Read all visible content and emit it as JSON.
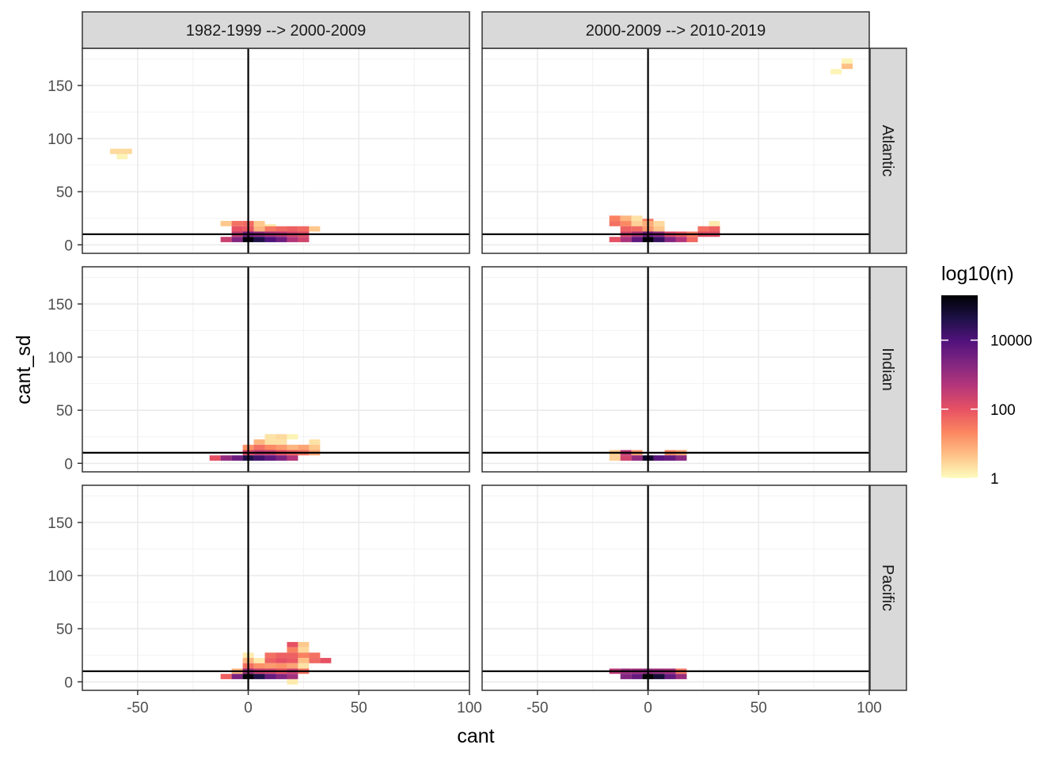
{
  "chart_data": {
    "type": "heatmap",
    "geom": "bin2d",
    "xlabel": "cant",
    "ylabel": "cant_sd",
    "xlim": [
      -75,
      100
    ],
    "ylim": [
      -8,
      185
    ],
    "x_ticks": [
      -50,
      0,
      50,
      100
    ],
    "x_tick_labels": [
      "-50",
      "0",
      "50",
      "100"
    ],
    "y_ticks": [
      0,
      50,
      100,
      150
    ],
    "y_tick_labels": [
      "0",
      "50",
      "100",
      "150"
    ],
    "bin_width": [
      5,
      5
    ],
    "reference_lines": {
      "vline_x": 0,
      "hline_y": 10
    },
    "columns": [
      "1982-1999 --> 2000-2009",
      "2000-2009 --> 2010-2019"
    ],
    "rows": [
      "Atlantic",
      "Indian",
      "Pacific"
    ],
    "legend": {
      "title": "log10(n)",
      "breaks": [
        1,
        100,
        10000
      ],
      "break_labels": [
        "1",
        "100",
        "10000"
      ],
      "range_log10": [
        0,
        5.3
      ],
      "palette": [
        "#fcfdbf",
        "#fec287",
        "#fb8761",
        "#e75263",
        "#b73779",
        "#822681",
        "#51127c",
        "#1d1147",
        "#000004"
      ]
    },
    "panels": [
      {
        "col": 0,
        "row": 0,
        "cells": [
          [
            -60,
            88,
            0.4
          ],
          [
            -55,
            88,
            0.4
          ],
          [
            -57,
            83,
            0.1
          ],
          [
            -10,
            20,
            0.6
          ],
          [
            -5,
            20,
            1.6
          ],
          [
            0,
            20,
            1.7
          ],
          [
            5,
            20,
            0.6
          ],
          [
            10,
            17,
            0.2
          ],
          [
            -5,
            15,
            2.0
          ],
          [
            0,
            15,
            1.9
          ],
          [
            5,
            15,
            0.8
          ],
          [
            10,
            15,
            1.5
          ],
          [
            15,
            15,
            1.7
          ],
          [
            20,
            15,
            1.8
          ],
          [
            25,
            15,
            1.7
          ],
          [
            30,
            15,
            0.6
          ],
          [
            -5,
            10,
            2.5
          ],
          [
            0,
            10,
            3.5
          ],
          [
            5,
            10,
            3.2
          ],
          [
            10,
            10,
            2.8
          ],
          [
            15,
            10,
            2.6
          ],
          [
            20,
            10,
            2.3
          ],
          [
            25,
            10,
            2.1
          ],
          [
            -10,
            5,
            2.4
          ],
          [
            -5,
            5,
            3.3
          ],
          [
            0,
            5,
            5.2
          ],
          [
            5,
            5,
            4.6
          ],
          [
            10,
            5,
            4.0
          ],
          [
            15,
            5,
            3.6
          ],
          [
            20,
            5,
            2.7
          ],
          [
            25,
            5,
            2.3
          ]
        ]
      },
      {
        "col": 1,
        "row": 0,
        "cells": [
          [
            90,
            173,
            0.1
          ],
          [
            90,
            168,
            0.7
          ],
          [
            85,
            163,
            0.1
          ],
          [
            -15,
            25,
            1.4
          ],
          [
            -10,
            25,
            0.8
          ],
          [
            -5,
            25,
            0.3
          ],
          [
            0,
            22,
            1.5
          ],
          [
            -15,
            20,
            1.6
          ],
          [
            -10,
            20,
            1.3
          ],
          [
            -5,
            20,
            0.5
          ],
          [
            0,
            20,
            0.9
          ],
          [
            5,
            20,
            0.4
          ],
          [
            30,
            20,
            0.2
          ],
          [
            -10,
            15,
            1.8
          ],
          [
            -5,
            15,
            1.7
          ],
          [
            0,
            15,
            1.1
          ],
          [
            5,
            15,
            0.6
          ],
          [
            25,
            15,
            1.6
          ],
          [
            30,
            15,
            1.8
          ],
          [
            -10,
            10,
            2.3
          ],
          [
            -5,
            10,
            2.8
          ],
          [
            0,
            10,
            3.6
          ],
          [
            5,
            10,
            3.2
          ],
          [
            10,
            10,
            2.2
          ],
          [
            15,
            10,
            1.9
          ],
          [
            20,
            10,
            1.5
          ],
          [
            25,
            10,
            2.1
          ],
          [
            30,
            10,
            2.1
          ],
          [
            -15,
            5,
            2.0
          ],
          [
            -10,
            5,
            2.8
          ],
          [
            -5,
            5,
            3.8
          ],
          [
            0,
            5,
            5.2
          ],
          [
            5,
            5,
            4.3
          ],
          [
            10,
            5,
            3.3
          ],
          [
            15,
            5,
            2.7
          ],
          [
            20,
            5,
            1.7
          ]
        ]
      },
      {
        "col": 0,
        "row": 1,
        "cells": [
          [
            10,
            25,
            0.3
          ],
          [
            15,
            25,
            0.4
          ],
          [
            20,
            25,
            0.1
          ],
          [
            5,
            20,
            0.8
          ],
          [
            10,
            20,
            0.3
          ],
          [
            15,
            20,
            0.3
          ],
          [
            30,
            20,
            0.3
          ],
          [
            0,
            15,
            1.2
          ],
          [
            5,
            15,
            1.6
          ],
          [
            10,
            15,
            1.3
          ],
          [
            15,
            15,
            1.1
          ],
          [
            20,
            15,
            0.8
          ],
          [
            25,
            15,
            1.0
          ],
          [
            30,
            15,
            0.6
          ],
          [
            0,
            10,
            2.2
          ],
          [
            5,
            10,
            2.5
          ],
          [
            10,
            10,
            2.4
          ],
          [
            15,
            10,
            2.0
          ],
          [
            20,
            10,
            1.8
          ],
          [
            25,
            10,
            1.6
          ],
          [
            30,
            10,
            1.0
          ],
          [
            -15,
            5,
            2.0
          ],
          [
            -10,
            5,
            3.1
          ],
          [
            -5,
            5,
            3.6
          ],
          [
            0,
            5,
            4.6
          ],
          [
            5,
            5,
            4.2
          ],
          [
            10,
            5,
            3.8
          ],
          [
            15,
            5,
            3.4
          ],
          [
            20,
            5,
            2.7
          ]
        ]
      },
      {
        "col": 1,
        "row": 1,
        "cells": [
          [
            -15,
            10,
            0.6
          ],
          [
            -10,
            10,
            2.6
          ],
          [
            -5,
            10,
            1.1
          ],
          [
            10,
            10,
            1.3
          ],
          [
            15,
            10,
            1.0
          ],
          [
            -15,
            5,
            0.5
          ],
          [
            -10,
            5,
            2.3
          ],
          [
            -5,
            5,
            3.1
          ],
          [
            0,
            5,
            4.9
          ],
          [
            5,
            5,
            3.9
          ],
          [
            10,
            5,
            3.7
          ],
          [
            15,
            5,
            3.2
          ]
        ]
      },
      {
        "col": 0,
        "row": 2,
        "cells": [
          [
            20,
            35,
            2.0
          ],
          [
            25,
            35,
            0.6
          ],
          [
            20,
            30,
            1.4
          ],
          [
            25,
            30,
            0.4
          ],
          [
            0,
            25,
            0.2
          ],
          [
            10,
            25,
            1.6
          ],
          [
            15,
            25,
            1.8
          ],
          [
            20,
            25,
            1.8
          ],
          [
            25,
            25,
            1.4
          ],
          [
            30,
            25,
            1.6
          ],
          [
            0,
            20,
            0.8
          ],
          [
            5,
            20,
            0.2
          ],
          [
            10,
            20,
            1.8
          ],
          [
            15,
            20,
            2.0
          ],
          [
            20,
            20,
            1.9
          ],
          [
            25,
            20,
            0.7
          ],
          [
            30,
            20,
            1.7
          ],
          [
            35,
            20,
            2.0
          ],
          [
            0,
            15,
            1.6
          ],
          [
            5,
            15,
            1.2
          ],
          [
            10,
            15,
            1.1
          ],
          [
            15,
            15,
            1.2
          ],
          [
            20,
            15,
            1.0
          ],
          [
            25,
            15,
            0.3
          ],
          [
            -5,
            10,
            0.8
          ],
          [
            0,
            10,
            3.0
          ],
          [
            5,
            10,
            2.4
          ],
          [
            10,
            10,
            2.3
          ],
          [
            15,
            10,
            2.0
          ],
          [
            20,
            10,
            2.4
          ],
          [
            25,
            10,
            1.6
          ],
          [
            -10,
            5,
            1.8
          ],
          [
            -5,
            5,
            3.4
          ],
          [
            0,
            5,
            5.2
          ],
          [
            5,
            5,
            4.6
          ],
          [
            10,
            5,
            3.7
          ],
          [
            15,
            5,
            3.3
          ],
          [
            20,
            5,
            2.9
          ],
          [
            20,
            0,
            0.2
          ]
        ]
      },
      {
        "col": 1,
        "row": 2,
        "cells": [
          [
            -15,
            10,
            2.6
          ],
          [
            -10,
            10,
            3.0
          ],
          [
            -5,
            10,
            3.0
          ],
          [
            0,
            10,
            3.1
          ],
          [
            5,
            10,
            3.0
          ],
          [
            10,
            10,
            2.9
          ],
          [
            15,
            10,
            1.5
          ],
          [
            -10,
            5,
            3.3
          ],
          [
            -5,
            5,
            3.7
          ],
          [
            0,
            5,
            5.3
          ],
          [
            5,
            5,
            4.8
          ],
          [
            10,
            5,
            3.7
          ],
          [
            15,
            5,
            3.0
          ]
        ]
      }
    ]
  }
}
